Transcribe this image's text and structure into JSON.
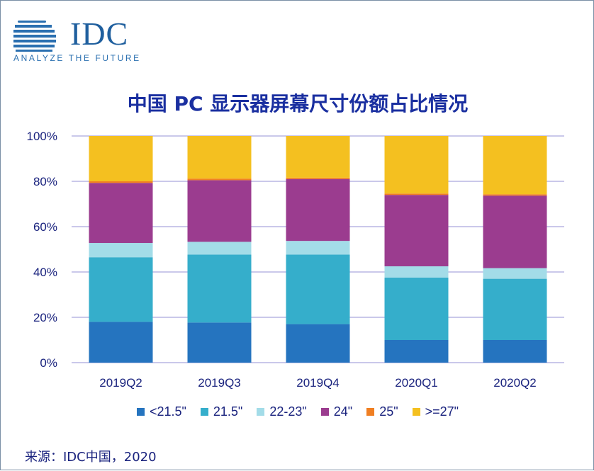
{
  "logo": {
    "text": "IDC",
    "tagline": "ANALYZE THE FUTURE",
    "color": "#1f5f9e"
  },
  "source": "来源：IDC中国，2020",
  "chart_data": {
    "type": "bar",
    "stacked": true,
    "title": "中国 PC 显示器屏幕尺寸份额占比情况",
    "categories": [
      "2019Q2",
      "2019Q3",
      "2019Q4",
      "2020Q1",
      "2020Q2"
    ],
    "ylim": [
      0,
      100
    ],
    "yticks": [
      "0%",
      "20%",
      "40%",
      "60%",
      "80%",
      "100%"
    ],
    "grid": true,
    "legend_position": "bottom",
    "series": [
      {
        "name": "<21.5\"",
        "color": "#2574bf",
        "values": [
          18,
          17.7,
          17,
          10,
          10
        ]
      },
      {
        "name": "21.5\"",
        "color": "#35aecb",
        "values": [
          28.5,
          30,
          30.7,
          27.5,
          27
        ]
      },
      {
        "name": "22-23\"",
        "color": "#a3dce8",
        "values": [
          6.3,
          5.6,
          6,
          5,
          4.7
        ]
      },
      {
        "name": "24\"",
        "color": "#9b3c8f",
        "values": [
          26.5,
          27.2,
          27.3,
          31.5,
          32
        ]
      },
      {
        "name": "25\"",
        "color": "#f07f22",
        "values": [
          0.7,
          0.7,
          0.6,
          0.6,
          0.6
        ]
      },
      {
        "name": ">=27\"",
        "color": "#f4c020",
        "values": [
          20,
          18.8,
          18.4,
          25.4,
          25.7
        ]
      }
    ]
  }
}
